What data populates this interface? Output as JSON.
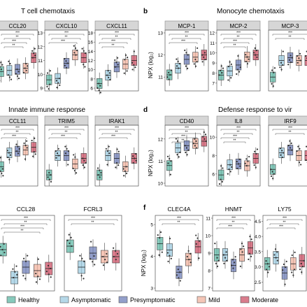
{
  "sections": [
    {
      "letter": "",
      "title": "T cell chemotaxis"
    },
    {
      "letter": "b",
      "title": "Monocyte chemotaxis"
    },
    {
      "letter": "",
      "title": "Innate immune response"
    },
    {
      "letter": "d",
      "title": "Defense response to vir"
    },
    {
      "letter": "",
      "title": ""
    },
    {
      "letter": "f",
      "title": ""
    }
  ],
  "ylabel": "NPX (log₂)",
  "legend": [
    {
      "name": "Healthy",
      "color": "#5fb8a6"
    },
    {
      "name": "Asymptomatic",
      "color": "#9ccbe0"
    },
    {
      "name": "Presymptomatic",
      "color": "#6f7fb8"
    },
    {
      "name": "Mild",
      "color": "#f2b39f"
    },
    {
      "name": "Moderate",
      "color": "#cc5066"
    }
  ],
  "chart_data": [
    {
      "type": "box",
      "title": "CCL20",
      "ylim": [
        null,
        null
      ],
      "ticks": [],
      "medians": [
        0.3,
        0.32,
        0.34,
        0.36,
        0.55
      ],
      "sig": 4
    },
    {
      "type": "box",
      "title": "CXCL10",
      "ylim": [
        9,
        13
      ],
      "ticks": [
        "9",
        "10",
        "11",
        "12",
        "13"
      ],
      "medians": [
        9.6,
        9.7,
        10.8,
        11.4,
        11.2
      ],
      "sig": 3
    },
    {
      "type": "box",
      "title": "CXCL11",
      "ylim": [
        6,
        18
      ],
      "ticks": [
        "6",
        "8",
        "10",
        "12",
        "14",
        "16",
        "18"
      ],
      "medians": [
        7.0,
        8.8,
        10.6,
        11.2,
        12.0
      ],
      "sig": 4
    },
    {
      "type": "box",
      "title": "MCP-1",
      "ylim": [
        10.5,
        13
      ],
      "ticks": [
        "11",
        "12",
        "13"
      ],
      "medians": [
        11.1,
        11.4,
        11.8,
        11.9,
        12.0
      ],
      "sig": 3
    },
    {
      "type": "box",
      "title": "MCP-2",
      "ylim": [
        6.5,
        12
      ],
      "ticks": [
        "7",
        "8",
        "9",
        "10",
        "11",
        "12"
      ],
      "medians": [
        7.8,
        8.2,
        8.8,
        9.6,
        9.8
      ],
      "sig": 4
    },
    {
      "type": "box",
      "title": "MCP-3",
      "ylim": [
        null,
        null
      ],
      "ticks": [],
      "medians": [
        0.2,
        0.5,
        0.55,
        0.5,
        0.5
      ],
      "sig": 2
    },
    {
      "type": "box",
      "title": "CCL11",
      "ylim": [
        null,
        null
      ],
      "ticks": [],
      "medians": [
        0.3,
        0.55,
        0.58,
        0.6,
        0.65
      ],
      "sig": 3
    },
    {
      "type": "box",
      "title": "TRIM5",
      "ylim": [
        null,
        null
      ],
      "ticks": [],
      "medians": [
        0.15,
        0.5,
        0.5,
        0.35,
        0.45
      ],
      "sig": 3
    },
    {
      "type": "box",
      "title": "IRAK1",
      "ylim": [
        null,
        null
      ],
      "ticks": [],
      "medians": [
        0.15,
        0.5,
        0.45,
        0.3,
        0.45
      ],
      "sig": 3
    },
    {
      "type": "box",
      "title": "CD40",
      "ylim": [
        10,
        12.5
      ],
      "ticks": [
        "10",
        "11",
        "12"
      ],
      "medians": [
        10.8,
        11.6,
        11.7,
        11.8,
        11.9
      ],
      "sig": 4
    },
    {
      "type": "box",
      "title": "IL8",
      "ylim": [
        5,
        11
      ],
      "ticks": [
        "6",
        "8",
        "10"
      ],
      "medians": [
        5.9,
        7.0,
        7.1,
        6.9,
        7.7
      ],
      "sig": 4
    },
    {
      "type": "box",
      "title": "IRF9",
      "ylim": [
        null,
        null
      ],
      "ticks": [],
      "medians": [
        0.25,
        0.55,
        0.6,
        0.5,
        0.5
      ],
      "sig": 2
    },
    {
      "type": "box",
      "title": "CCL28",
      "ylim": [
        null,
        null
      ],
      "ticks": [],
      "medians": [
        0.55,
        0.15,
        0.3,
        0.25,
        0.28
      ],
      "sig": 4
    },
    {
      "type": "box",
      "title": "FCRL3",
      "ylim": [
        null,
        null
      ],
      "ticks": [],
      "medians": [
        0.6,
        0.3,
        0.5,
        0.45,
        0.45
      ],
      "sig": 2
    },
    {
      "type": "box",
      "title": "CLEC4A",
      "ylim": [
        3,
        5.2
      ],
      "ticks": [
        "3",
        "4",
        "5"
      ],
      "medians": [
        4.4,
        4.2,
        3.5,
        3.9,
        4.3
      ],
      "sig": 2
    },
    {
      "type": "box",
      "title": "HNMT",
      "ylim": [
        7,
        11
      ],
      "ticks": [
        "7",
        "8",
        "9",
        "10",
        "11"
      ],
      "medians": [
        8.9,
        8.9,
        8.3,
        8.9,
        9.3
      ],
      "sig": 3
    },
    {
      "type": "box",
      "title": "LY75",
      "ylim": [
        2.3,
        4.6
      ],
      "ticks": [
        "2.5",
        "3.0",
        "3.5",
        "4.0",
        "4.5"
      ],
      "medians": [
        3.1,
        3.3,
        2.8,
        3.1,
        3.2
      ],
      "sig": 3
    }
  ]
}
